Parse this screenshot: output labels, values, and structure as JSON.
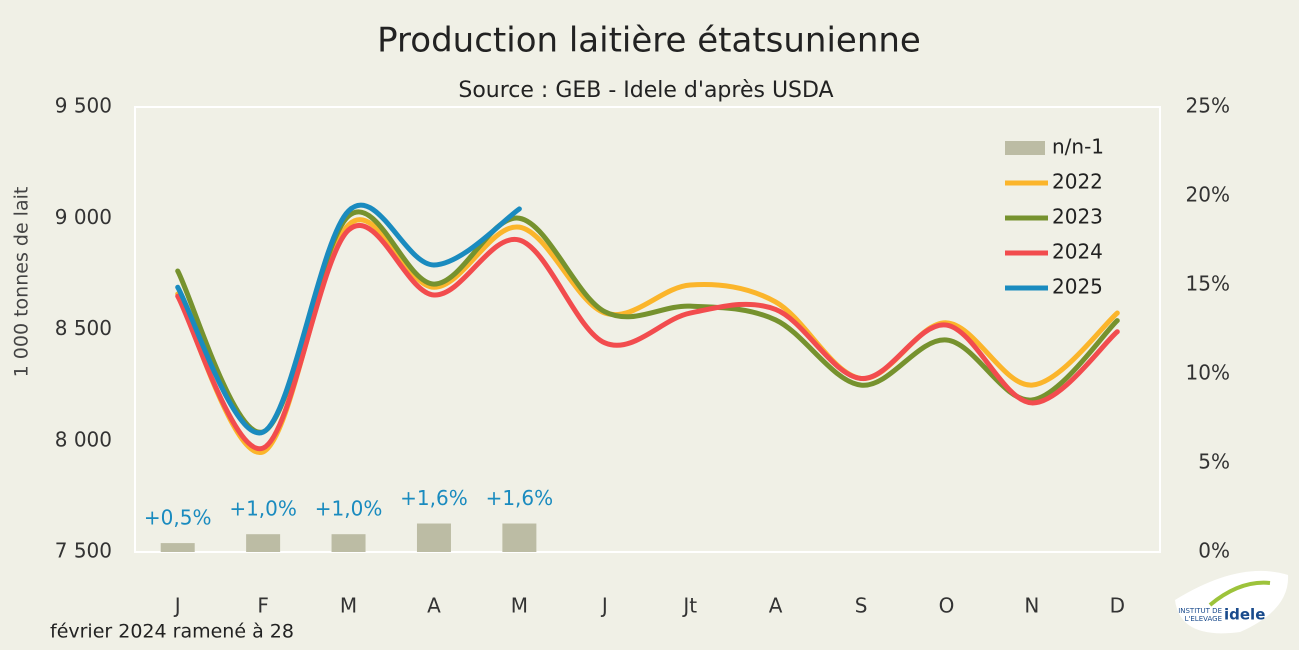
{
  "chart_data": {
    "type": "line",
    "title": "Production laitière étatsunienne",
    "subtitle": "Source : GEB - Idele d'après USDA",
    "y_label": "1 000 tonnes de lait",
    "footnote": "février 2024 ramené à 28",
    "logo": {
      "line1": "INSTITUT DE",
      "line2": "L'ELEVAGE",
      "brand": "idele"
    },
    "categories": [
      "J",
      "F",
      "M",
      "A",
      "M",
      "J",
      "Jt",
      "A",
      "S",
      "O",
      "N",
      "D"
    ],
    "ylim": [
      7500,
      9500
    ],
    "yticks": [
      {
        "value": 7500,
        "label": "7 500"
      },
      {
        "value": 8000,
        "label": "8 000"
      },
      {
        "value": 8500,
        "label": "8 500"
      },
      {
        "value": 9000,
        "label": "9 000"
      },
      {
        "value": 9500,
        "label": "9 500"
      }
    ],
    "y2lim": [
      0,
      25
    ],
    "y2ticks": [
      {
        "value": 0,
        "label": "0%"
      },
      {
        "value": 5,
        "label": "5%"
      },
      {
        "value": 10,
        "label": "10%"
      },
      {
        "value": 15,
        "label": "15%"
      },
      {
        "value": 20,
        "label": "20%"
      },
      {
        "value": 25,
        "label": "25%"
      }
    ],
    "legend": "top-right",
    "series": [
      {
        "name": "n/n-1",
        "type": "bar",
        "axis": "y2",
        "color": "#bcbca4",
        "label_color": "#1a8bbf",
        "values": [
          0.5,
          1.0,
          1.0,
          1.6,
          1.6,
          null,
          null,
          null,
          null,
          null,
          null,
          null
        ],
        "value_labels": [
          "+0,5%",
          "+1,0%",
          "+1,0%",
          "+1,6%",
          "+1,6%",
          null,
          null,
          null,
          null,
          null,
          null,
          null
        ]
      },
      {
        "name": "2022",
        "color": "#fbb52b",
        "values": [
          8660,
          7950,
          8970,
          8690,
          8960,
          8574,
          8700,
          8624,
          8280,
          8530,
          8250,
          8574
        ]
      },
      {
        "name": "2023",
        "color": "#76922e",
        "values": [
          8763,
          8040,
          9010,
          8704,
          9000,
          8580,
          8605,
          8543,
          8250,
          8453,
          8183,
          8540
        ]
      },
      {
        "name": "2024",
        "color": "#f24c4e",
        "values": [
          8650,
          7967,
          8947,
          8655,
          8902,
          8440,
          8574,
          8590,
          8280,
          8520,
          8170,
          8490
        ]
      },
      {
        "name": "2025",
        "color": "#1a8bbf",
        "values": [
          8690,
          8039,
          9033,
          8790,
          9042,
          null,
          null,
          null,
          null,
          null,
          null,
          null
        ]
      }
    ]
  }
}
